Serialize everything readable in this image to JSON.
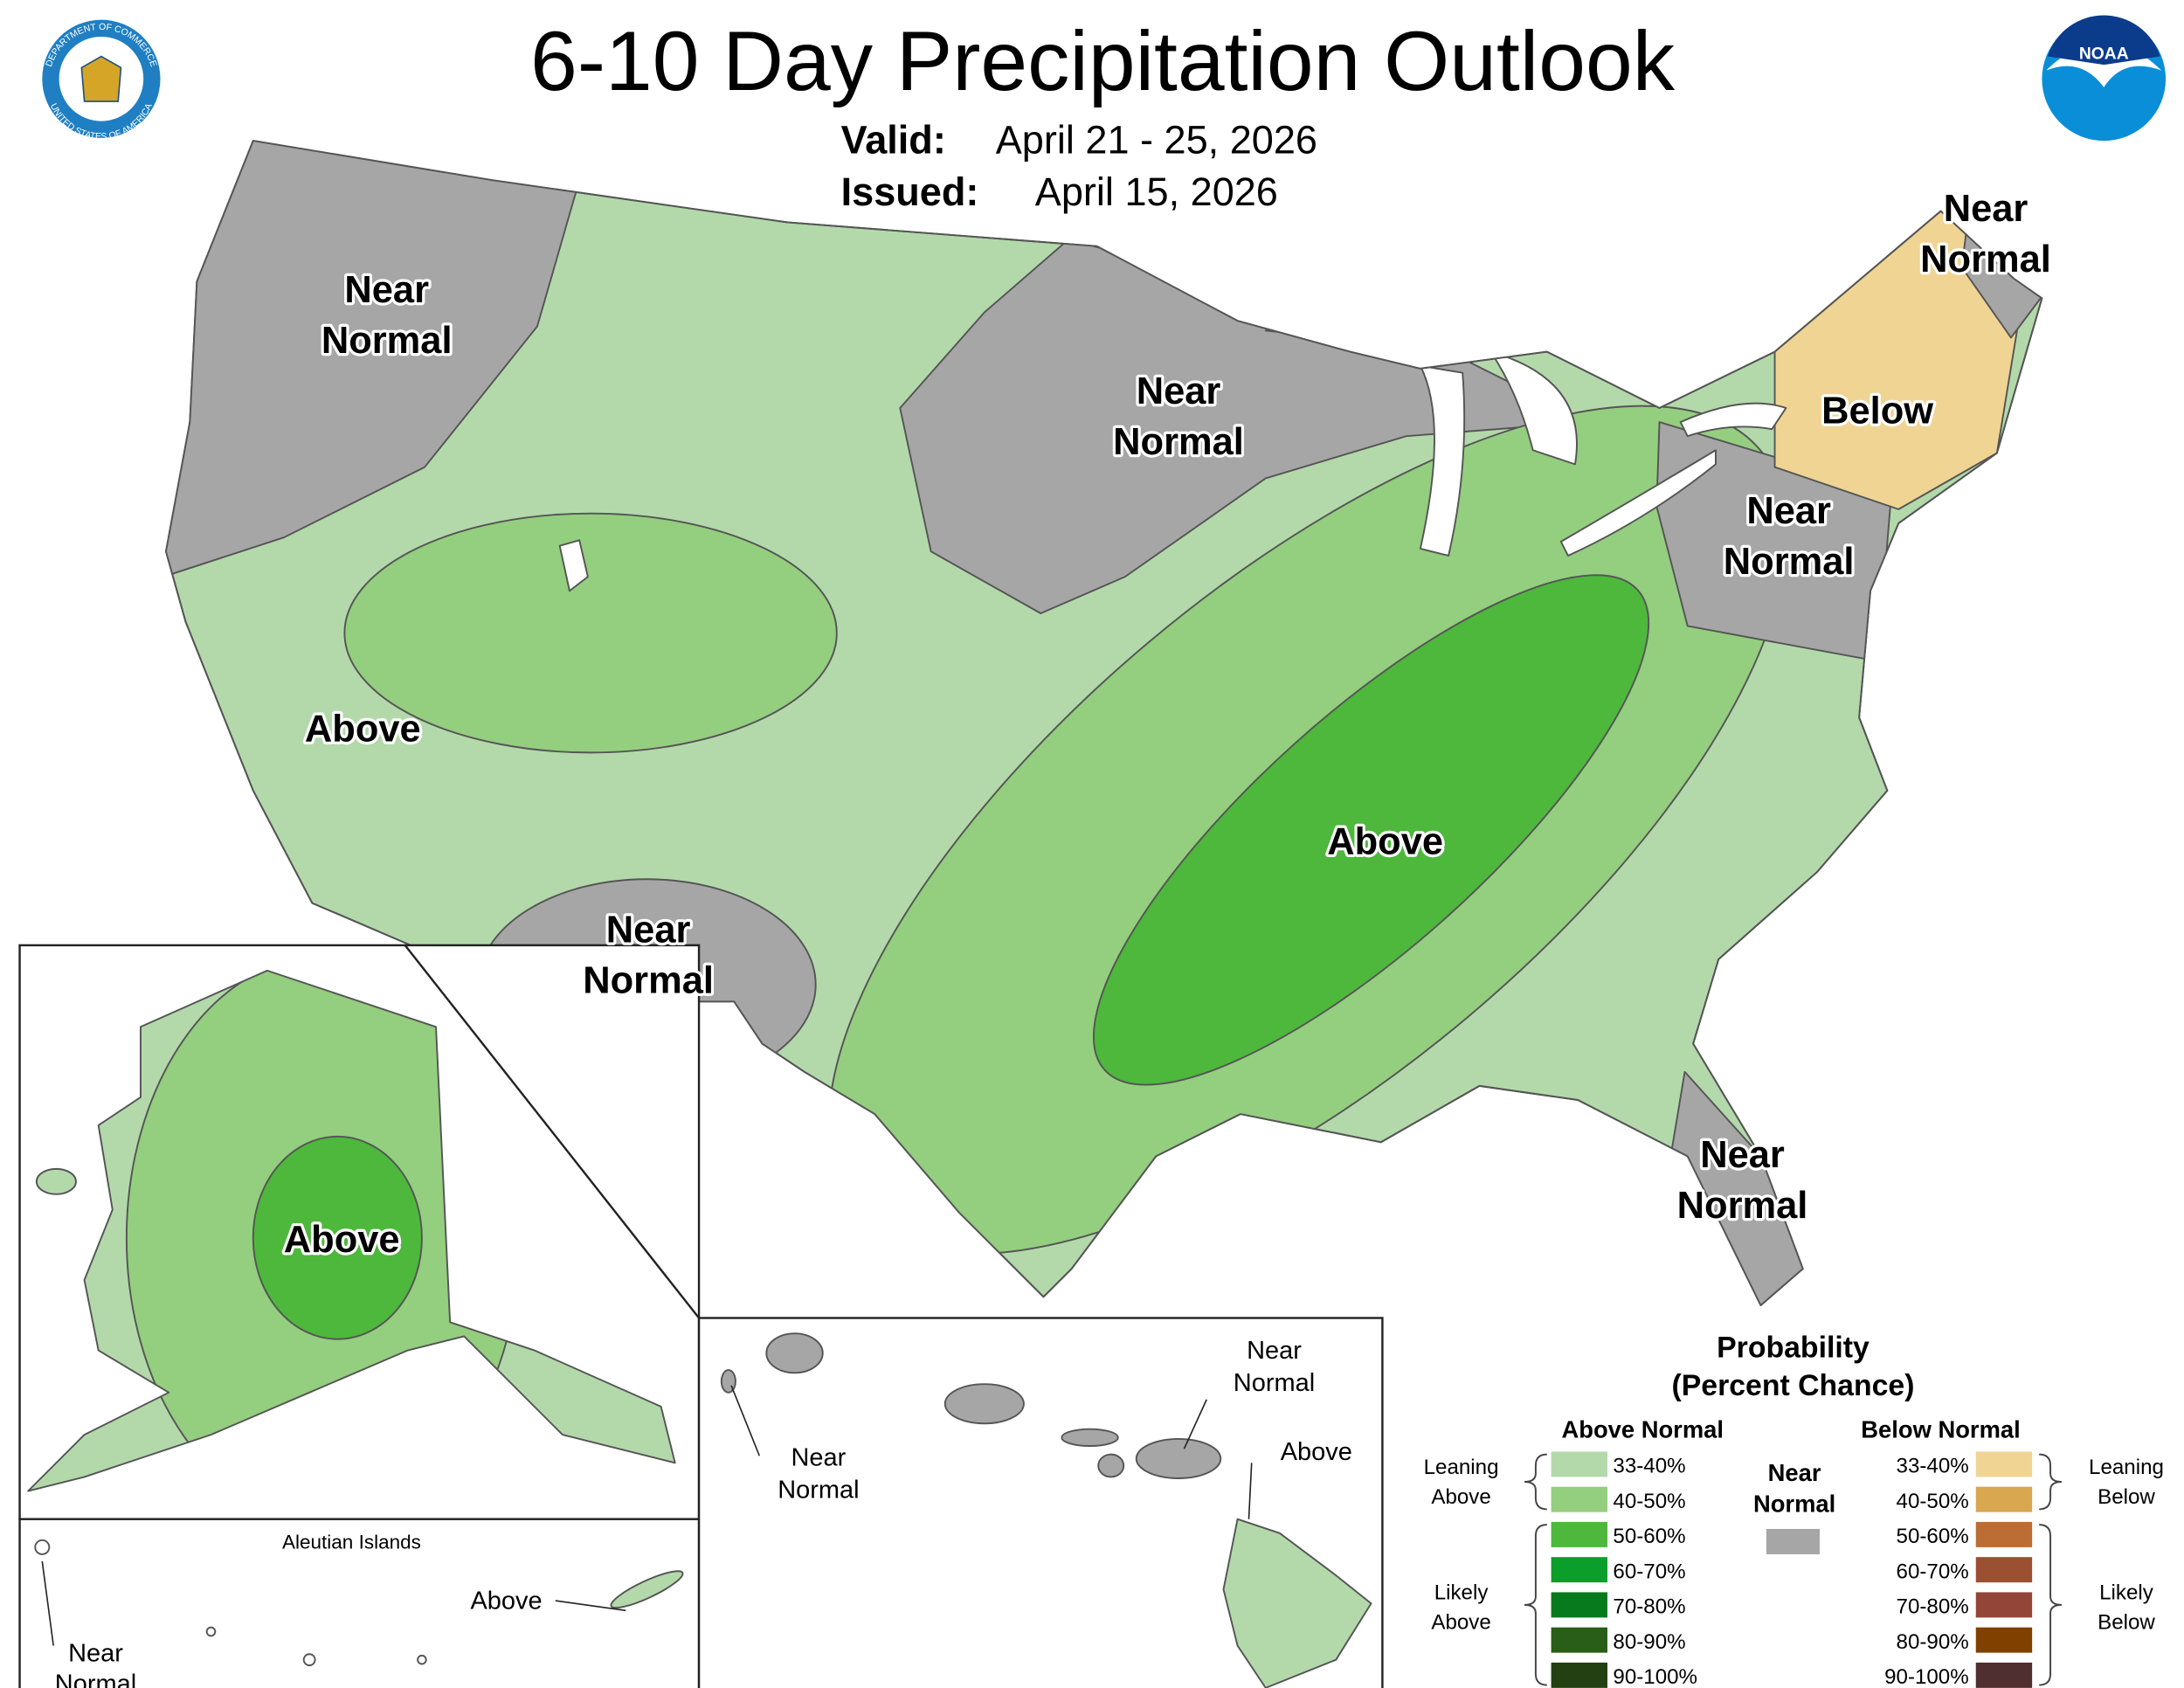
{
  "header": {
    "title": "6-10 Day Precipitation Outlook",
    "valid_label": "Valid:",
    "valid": "April 21 - 25, 2026",
    "issued_label": "Issued:",
    "issued": "April 15, 2026",
    "seal_top": "DEPARTMENT OF COMMERCE",
    "seal_bottom": "UNITED STATES OF AMERICA",
    "noaa_logo": "NOAA"
  },
  "conus_labels": [
    {
      "lines": [
        "Near",
        "Normal"
      ]
    },
    {
      "lines": [
        "Near",
        "Normal"
      ]
    },
    {
      "lines": [
        "Above"
      ]
    },
    {
      "lines": [
        "Near",
        "Normal"
      ]
    },
    {
      "lines": [
        "Above"
      ]
    },
    {
      "lines": [
        "Near",
        "Normal"
      ]
    },
    {
      "lines": [
        "Below"
      ]
    },
    {
      "lines": [
        "Near",
        "Normal"
      ]
    },
    {
      "lines": [
        "Near",
        "Normal"
      ]
    }
  ],
  "alaska": {
    "labels": [
      {
        "lines": [
          "Above"
        ]
      }
    ],
    "aleutian_title": "Aleutian Islands",
    "aleutian_labels": [
      {
        "lines": [
          "Above"
        ]
      },
      {
        "lines": [
          "Near",
          "Normal"
        ]
      }
    ]
  },
  "hawaii": {
    "labels": [
      {
        "lines": [
          "Near",
          "Normal"
        ]
      },
      {
        "lines": [
          "Near",
          "Normal"
        ]
      },
      {
        "lines": [
          "Above"
        ]
      }
    ]
  },
  "legend": {
    "title": [
      "Probability",
      "(Percent Chance)"
    ],
    "above_title": "Above Normal",
    "below_title": "Below Normal",
    "near_title": [
      "Near",
      "Normal"
    ],
    "near_color": "#a6a6a6",
    "above": [
      {
        "label": "33-40%",
        "color": "#b3d9ab"
      },
      {
        "label": "40-50%",
        "color": "#94ce7f"
      },
      {
        "label": "50-60%",
        "color": "#4db83b"
      },
      {
        "label": "60-70%",
        "color": "#0c9e2a"
      },
      {
        "label": "70-80%",
        "color": "#077a1e"
      },
      {
        "label": "80-90%",
        "color": "#285e18"
      },
      {
        "label": "90-100%",
        "color": "#224012"
      }
    ],
    "below": [
      {
        "label": "33-40%",
        "color": "#f0d493"
      },
      {
        "label": "40-50%",
        "color": "#d8a750"
      },
      {
        "label": "50-60%",
        "color": "#bb6d33"
      },
      {
        "label": "60-70%",
        "color": "#9b5031"
      },
      {
        "label": "70-80%",
        "color": "#934538"
      },
      {
        "label": "80-90%",
        "color": "#804000"
      },
      {
        "label": "90-100%",
        "color": "#4f2f2f"
      }
    ],
    "brackets": {
      "leaning_above": [
        "Leaning",
        "Above"
      ],
      "likely_above": [
        "Likely",
        "Above"
      ],
      "leaning_below": [
        "Leaning",
        "Below"
      ],
      "likely_below": [
        "Likely",
        "Below"
      ]
    }
  }
}
